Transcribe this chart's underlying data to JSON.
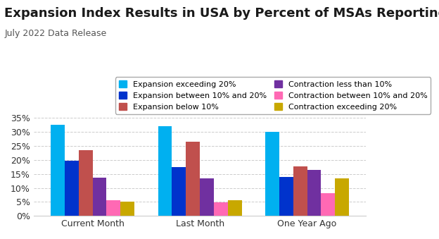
{
  "title": "Expansion Index Results in USA by Percent of MSAs Reporting",
  "subtitle": "July 2022 Data Release",
  "categories": [
    "Current Month",
    "Last Month",
    "One Year Ago"
  ],
  "series": [
    {
      "label": "Expansion exceeding 20%",
      "color": "#00B0F0",
      "values": [
        32.5,
        32.0,
        30.0
      ]
    },
    {
      "label": "Expansion between 10% and 20%",
      "color": "#0033CC",
      "values": [
        19.7,
        17.5,
        14.0
      ]
    },
    {
      "label": "Expansion below 10%",
      "color": "#C0504D",
      "values": [
        23.5,
        26.5,
        17.8
      ]
    },
    {
      "label": "Contraction less than 10%",
      "color": "#7030A0",
      "values": [
        13.7,
        13.5,
        16.5
      ]
    },
    {
      "label": "Contraction between 10% and 20%",
      "color": "#FF69B4",
      "values": [
        5.5,
        4.8,
        8.0
      ]
    },
    {
      "label": "Contraction exceeding 20%",
      "color": "#C8A800",
      "values": [
        5.1,
        5.6,
        13.5
      ]
    }
  ],
  "ylim": [
    0,
    37
  ],
  "yticks": [
    0,
    5,
    10,
    15,
    20,
    25,
    30,
    35
  ],
  "ytick_labels": [
    "0%",
    "5%",
    "10%",
    "15%",
    "20%",
    "25%",
    "30%",
    "35%"
  ],
  "background_color": "#FFFFFF",
  "grid_color": "#CCCCCC",
  "title_fontsize": 13,
  "subtitle_fontsize": 9,
  "tick_fontsize": 9,
  "legend_fontsize": 8
}
